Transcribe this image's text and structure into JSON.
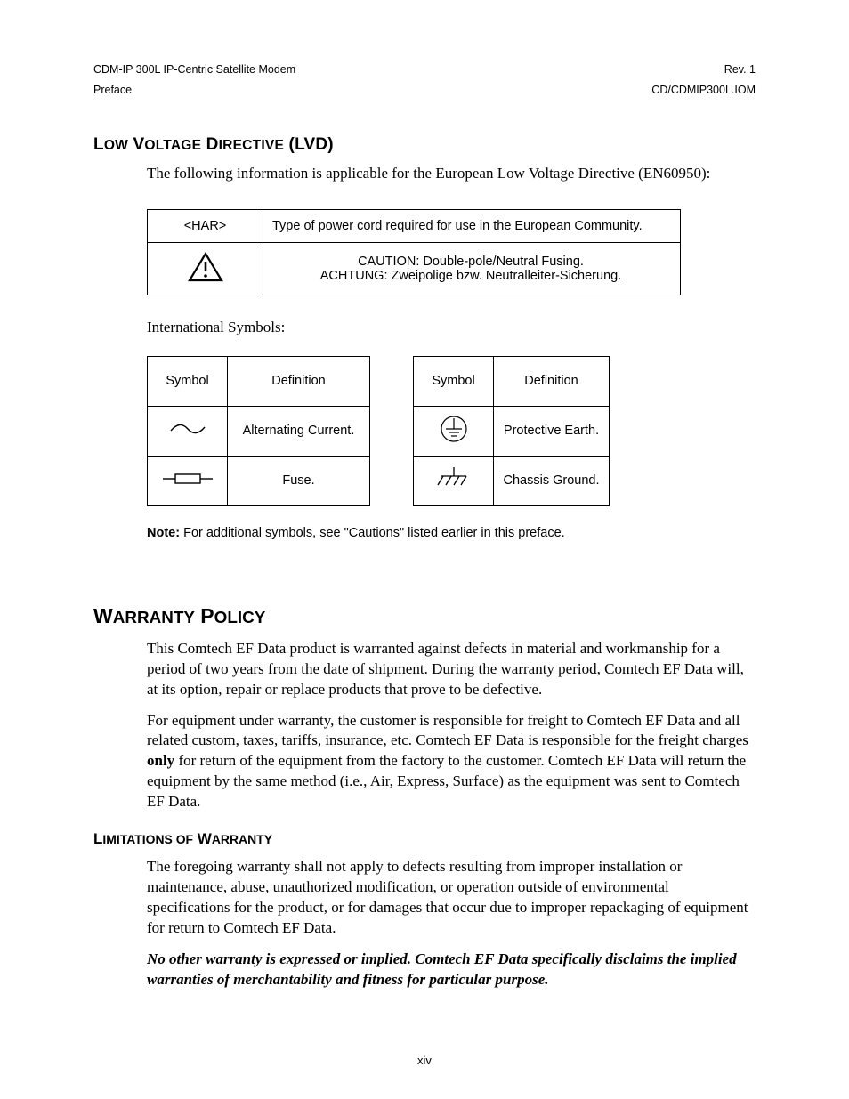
{
  "header": {
    "left_line1": "CDM-IP 300L IP-Centric Satellite Modem",
    "left_line2": "Preface",
    "right_line1": "Rev. 1",
    "right_line2": "CD/CDMIP300L.IOM"
  },
  "lvd": {
    "title_html": "L<span class='rest'>OW</span> V<span class='rest'>OLTAGE</span> D<span class='rest'>IRECTIVE</span> (LVD)",
    "intro": "The following information is applicable for the European Low Voltage Directive (EN60950):",
    "table": {
      "rows": [
        {
          "c1": "<HAR>",
          "c2": "Type of power cord required for use in the European Community."
        },
        {
          "c1_icon": "caution",
          "c2_line1": "CAUTION: Double-pole/Neutral Fusing.",
          "c2_line2": "ACHTUNG: Zweipolige bzw. Neutralleiter-Sicherung."
        }
      ]
    },
    "intl_label": "International Symbols:",
    "symbols_left": {
      "headers": [
        "Symbol",
        "Definition"
      ],
      "rows": [
        {
          "icon": "ac",
          "def": "Alternating Current."
        },
        {
          "icon": "fuse",
          "def": "Fuse."
        }
      ]
    },
    "symbols_right": {
      "headers": [
        "Symbol",
        "Definition"
      ],
      "rows": [
        {
          "icon": "pearth",
          "def": "Protective Earth."
        },
        {
          "icon": "chassis",
          "def": "Chassis Ground."
        }
      ]
    },
    "note_bold": "Note:",
    "note_rest": " For additional symbols, see \"Cautions\" listed earlier in this preface."
  },
  "warranty": {
    "title_html": "W<span class='rest'>ARRANTY</span> P<span class='rest'>OLICY</span>",
    "p1": "This Comtech EF Data product is warranted against defects in material and workmanship for a period of two years from the date of shipment. During the warranty period, Comtech EF Data will, at its option, repair or replace products that prove to be defective.",
    "p2_pre": "For equipment under warranty, the customer is responsible for freight to Comtech EF Data and all related custom, taxes, tariffs, insurance, etc. Comtech EF Data is responsible for the freight charges ",
    "p2_bold": "only",
    "p2_post": " for return of the equipment from the factory to the customer. Comtech EF Data will return the equipment by the same method (i.e., Air, Express, Surface) as the equipment was sent to Comtech EF Data.",
    "limitations_title_html": "L<span class='rest'>IMITATIONS OF</span> W<span class='rest'>ARRANTY</span>",
    "lim_p1": "The foregoing warranty shall not apply to defects resulting from improper installation or maintenance, abuse, unauthorized modification, or operation outside of environmental specifications for the product, or for damages that occur due to improper repackaging of equipment for return to Comtech EF Data.",
    "lim_emph": "No other warranty is expressed or implied. Comtech EF Data specifically disclaims the implied warranties of merchantability and fitness for particular purpose."
  },
  "page_number": "xiv",
  "colors": {
    "text": "#000000",
    "bg": "#ffffff",
    "border": "#000000"
  }
}
